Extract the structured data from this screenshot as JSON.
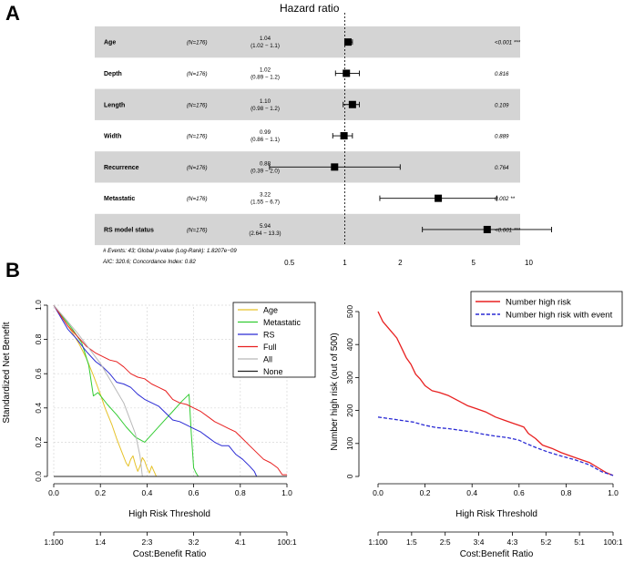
{
  "panel_labels": [
    "A",
    "B"
  ],
  "chart_data": [
    {
      "type": "forest",
      "title": "Hazard ratio",
      "x_scale": "log",
      "xlim": [
        0.35,
        16
      ],
      "x_ticks": [
        0.5,
        1,
        2,
        5,
        10
      ],
      "x_tick_labels": [
        "0.5",
        "1",
        "2",
        "5",
        "10"
      ],
      "rows": [
        {
          "label": "Age",
          "n": "(N=176)",
          "hr": "1.04",
          "ci_text": "(1.02 −  1.1)",
          "est": 1.04,
          "lo": 1.02,
          "hi": 1.1,
          "p": "<0.001 ***",
          "shaded": true
        },
        {
          "label": "Depth",
          "n": "(N=176)",
          "hr": "1.02",
          "ci_text": "(0.89 −  1.2)",
          "est": 1.02,
          "lo": 0.89,
          "hi": 1.2,
          "p": "0.816",
          "shaded": false
        },
        {
          "label": "Length",
          "n": "(N=176)",
          "hr": "1.10",
          "ci_text": "(0.98 −  1.2)",
          "est": 1.1,
          "lo": 0.98,
          "hi": 1.2,
          "p": "0.109",
          "shaded": true
        },
        {
          "label": "Width",
          "n": "(N=176)",
          "hr": "0.99",
          "ci_text": "(0.86 −  1.1)",
          "est": 0.99,
          "lo": 0.86,
          "hi": 1.1,
          "p": "0.889",
          "shaded": false
        },
        {
          "label": "Recurrence",
          "n": "(N=176)",
          "hr": "0.88",
          "ci_text": "(0.39 −  2.0)",
          "est": 0.88,
          "lo": 0.39,
          "hi": 2.0,
          "p": "0.764",
          "shaded": true
        },
        {
          "label": "Metastatic",
          "n": "(N=176)",
          "hr": "3.22",
          "ci_text": "(1.55 −  6.7)",
          "est": 3.22,
          "lo": 1.55,
          "hi": 6.7,
          "p": "0.002 **",
          "shaded": false
        },
        {
          "label": "RS model status",
          "n": "(N=176)",
          "hr": "5.94",
          "ci_text": "(2.64 − 13.3)",
          "est": 5.94,
          "lo": 2.64,
          "hi": 13.3,
          "p": "<0.001 ***",
          "shaded": true
        }
      ],
      "footnote_1": "# Events: 43; Global p-value (Log-Rank): 1.8207e−09",
      "footnote_2": "AIC: 320.6; Concordance Index: 0.82"
    },
    {
      "type": "line",
      "title": "",
      "xlabel": "High Risk Threshold",
      "ylabel": "Standardized Net Benefit",
      "xlim": [
        0,
        1
      ],
      "ylim": [
        0,
        1
      ],
      "x_ticks": [
        0,
        0.2,
        0.4,
        0.6,
        0.8,
        1
      ],
      "x_tick_labels": [
        "0.0",
        "0.2",
        "0.4",
        "0.6",
        "0.8",
        "1.0"
      ],
      "y_ticks": [
        0,
        0.2,
        0.4,
        0.6,
        0.8,
        1
      ],
      "y_tick_labels": [
        "0.0",
        "0.2",
        "0.4",
        "0.6",
        "0.8",
        "1.0"
      ],
      "grid": true,
      "legend_position": "top-right",
      "cost_benefit_label": "Cost:Benefit Ratio",
      "cost_benefit_ticks": [
        "1:100",
        "1:4",
        "2:3",
        "3:2",
        "4:1",
        "100:1"
      ],
      "series": [
        {
          "name": "Age",
          "color": "#e6c229",
          "x": [
            0,
            0.02,
            0.05,
            0.08,
            0.11,
            0.14,
            0.17,
            0.2,
            0.22,
            0.25,
            0.27,
            0.29,
            0.31,
            0.32,
            0.33,
            0.34,
            0.35,
            0.36,
            0.37,
            0.38,
            0.39,
            0.4,
            0.41,
            0.42,
            0.43,
            0.44,
            0.45,
            0.5,
            0.6,
            1.0
          ],
          "y": [
            1.0,
            0.96,
            0.9,
            0.84,
            0.77,
            0.69,
            0.59,
            0.48,
            0.4,
            0.3,
            0.22,
            0.15,
            0.08,
            0.06,
            0.1,
            0.12,
            0.07,
            0.03,
            0.06,
            0.11,
            0.09,
            0.05,
            0.02,
            0.06,
            0.03,
            0.0,
            0.0,
            0.0,
            0.0,
            0.0
          ]
        },
        {
          "name": "Metastatic",
          "color": "#33cc33",
          "x": [
            0,
            0.04,
            0.08,
            0.12,
            0.15,
            0.17,
            0.19,
            0.23,
            0.27,
            0.31,
            0.35,
            0.39,
            0.43,
            0.47,
            0.51,
            0.55,
            0.58,
            0.59,
            0.6,
            0.61,
            0.62,
            0.7,
            1.0
          ],
          "y": [
            1.0,
            0.93,
            0.86,
            0.78,
            0.65,
            0.47,
            0.49,
            0.42,
            0.36,
            0.29,
            0.23,
            0.2,
            0.26,
            0.32,
            0.38,
            0.44,
            0.48,
            0.25,
            0.05,
            0.02,
            0.0,
            0.0,
            0.0
          ]
        },
        {
          "name": "RS",
          "color": "#2a2ad4",
          "x": [
            0,
            0.03,
            0.06,
            0.1,
            0.14,
            0.18,
            0.21,
            0.24,
            0.27,
            0.3,
            0.33,
            0.36,
            0.39,
            0.42,
            0.45,
            0.48,
            0.51,
            0.54,
            0.57,
            0.6,
            0.63,
            0.66,
            0.69,
            0.72,
            0.75,
            0.78,
            0.81,
            0.84,
            0.86,
            0.87,
            1.0
          ],
          "y": [
            1.0,
            0.93,
            0.86,
            0.8,
            0.73,
            0.67,
            0.64,
            0.6,
            0.55,
            0.54,
            0.52,
            0.48,
            0.45,
            0.43,
            0.41,
            0.37,
            0.33,
            0.32,
            0.3,
            0.28,
            0.26,
            0.23,
            0.2,
            0.18,
            0.18,
            0.13,
            0.1,
            0.06,
            0.03,
            0.0,
            0.0
          ]
        },
        {
          "name": "Full",
          "color": "#e82020",
          "x": [
            0,
            0.03,
            0.06,
            0.1,
            0.14,
            0.18,
            0.21,
            0.24,
            0.27,
            0.3,
            0.33,
            0.36,
            0.39,
            0.42,
            0.45,
            0.48,
            0.51,
            0.54,
            0.57,
            0.6,
            0.63,
            0.66,
            0.69,
            0.72,
            0.75,
            0.78,
            0.81,
            0.84,
            0.87,
            0.9,
            0.93,
            0.96,
            0.98,
            1.0
          ],
          "y": [
            1.0,
            0.94,
            0.88,
            0.82,
            0.76,
            0.72,
            0.7,
            0.68,
            0.67,
            0.64,
            0.6,
            0.58,
            0.57,
            0.54,
            0.52,
            0.5,
            0.45,
            0.43,
            0.42,
            0.4,
            0.38,
            0.35,
            0.32,
            0.3,
            0.28,
            0.26,
            0.22,
            0.18,
            0.14,
            0.1,
            0.08,
            0.05,
            0.01,
            0.01
          ]
        },
        {
          "name": "All",
          "color": "#b8b8b8",
          "x": [
            0,
            0.1,
            0.2,
            0.3,
            0.35,
            0.37,
            0.38
          ],
          "y": [
            1.0,
            0.84,
            0.66,
            0.43,
            0.25,
            0.12,
            0.0
          ]
        },
        {
          "name": "None",
          "color": "#222222",
          "x": [
            0,
            1
          ],
          "y": [
            0,
            0
          ]
        }
      ]
    },
    {
      "type": "line",
      "title": "",
      "xlabel": "High Risk Threshold",
      "ylabel": "Number high risk (out of 500)",
      "xlim": [
        0,
        1
      ],
      "ylim": [
        0,
        500
      ],
      "x_ticks": [
        0,
        0.2,
        0.4,
        0.6,
        0.8,
        1
      ],
      "x_tick_labels": [
        "0.0",
        "0.2",
        "0.4",
        "0.6",
        "0.8",
        "1.0"
      ],
      "y_ticks": [
        0,
        100,
        200,
        300,
        400,
        500
      ],
      "y_tick_labels": [
        "0",
        "100",
        "200",
        "300",
        "400",
        "500"
      ],
      "grid": false,
      "legend_position": "top-right",
      "cost_benefit_label": "Cost:Benefit Ratio",
      "cost_benefit_ticks": [
        "1:100",
        "1:5",
        "2:5",
        "3:4",
        "4:3",
        "5:2",
        "5:1",
        "100:1"
      ],
      "series": [
        {
          "name": "Number high risk",
          "color": "#e82020",
          "style": "solid",
          "x": [
            0,
            0.02,
            0.05,
            0.08,
            0.1,
            0.12,
            0.14,
            0.16,
            0.18,
            0.2,
            0.23,
            0.26,
            0.3,
            0.34,
            0.38,
            0.42,
            0.46,
            0.5,
            0.54,
            0.58,
            0.6,
            0.62,
            0.64,
            0.67,
            0.7,
            0.74,
            0.78,
            0.82,
            0.86,
            0.9,
            0.94,
            0.97,
            1.0
          ],
          "y": [
            500,
            470,
            445,
            420,
            390,
            360,
            340,
            310,
            295,
            275,
            260,
            255,
            245,
            230,
            215,
            205,
            195,
            180,
            170,
            160,
            155,
            150,
            130,
            115,
            95,
            85,
            72,
            62,
            52,
            42,
            25,
            12,
            3
          ]
        },
        {
          "name": "Number high risk with event",
          "color": "#2a2ad4",
          "style": "dashed",
          "x": [
            0,
            0.05,
            0.1,
            0.15,
            0.2,
            0.25,
            0.3,
            0.35,
            0.4,
            0.45,
            0.5,
            0.55,
            0.6,
            0.63,
            0.67,
            0.72,
            0.78,
            0.84,
            0.9,
            0.95,
            1.0
          ],
          "y": [
            180,
            175,
            170,
            165,
            155,
            148,
            145,
            140,
            135,
            128,
            122,
            118,
            110,
            100,
            88,
            75,
            62,
            50,
            35,
            15,
            3
          ]
        }
      ]
    }
  ]
}
